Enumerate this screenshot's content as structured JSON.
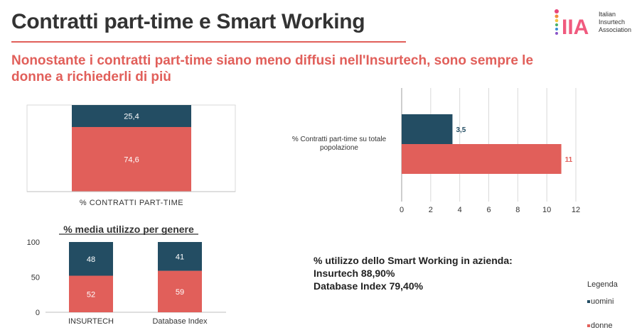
{
  "header": {
    "title": "Contratti part-time e Smart Working",
    "subtitle": "Nonostante i contratti part-time siano meno diffusi nell'Insurtech, sono sempre le donne a richiederli di più"
  },
  "logo": {
    "mark": "IIA",
    "lines": [
      "Italian",
      "Insurtech",
      "Association"
    ]
  },
  "colors": {
    "uomini": "#234d63",
    "donne": "#e15f5a"
  },
  "chart_data": [
    {
      "type": "bar",
      "stacked": true,
      "categories": [
        "% CONTRATTI PART-TIME"
      ],
      "series": [
        {
          "name": "donne",
          "values": [
            74.6
          ],
          "labels": [
            "74,6"
          ]
        },
        {
          "name": "uomini",
          "values": [
            25.4
          ],
          "labels": [
            "25,4"
          ]
        }
      ],
      "ylim": [
        0,
        100
      ],
      "xlabel": "% CONTRATTI PART-TIME"
    },
    {
      "type": "bar",
      "orientation": "horizontal",
      "categories": [
        "% Contratti part-time su totale popolazione"
      ],
      "series": [
        {
          "name": "uomini",
          "values": [
            3.5
          ],
          "labels": [
            "3,5"
          ]
        },
        {
          "name": "donne",
          "values": [
            11
          ],
          "labels": [
            "11"
          ]
        }
      ],
      "xlim": [
        0,
        12
      ],
      "xticks": [
        "0",
        "2",
        "4",
        "6",
        "8",
        "10",
        "12"
      ],
      "grid": true
    },
    {
      "type": "bar",
      "stacked": true,
      "title": "% media utilizzo per genere",
      "categories": [
        "INSURTECH",
        "Database Index"
      ],
      "series": [
        {
          "name": "donne",
          "values": [
            52,
            59
          ],
          "labels": [
            "52",
            "59"
          ]
        },
        {
          "name": "uomini",
          "values": [
            48,
            41
          ],
          "labels": [
            "48",
            "41"
          ]
        }
      ],
      "ylim": [
        0,
        100
      ],
      "yticks": [
        "0",
        "50",
        "100"
      ]
    }
  ],
  "smart_working": {
    "heading": "% utilizzo dello Smart Working in azienda:",
    "line1": "Insurtech 88,90%",
    "line2": "Database Index 79,40%"
  },
  "legend": {
    "title": "Legenda",
    "items": [
      {
        "label": "uomini",
        "color": "#234d63"
      },
      {
        "label": "donne",
        "color": "#e15f5a"
      }
    ]
  }
}
